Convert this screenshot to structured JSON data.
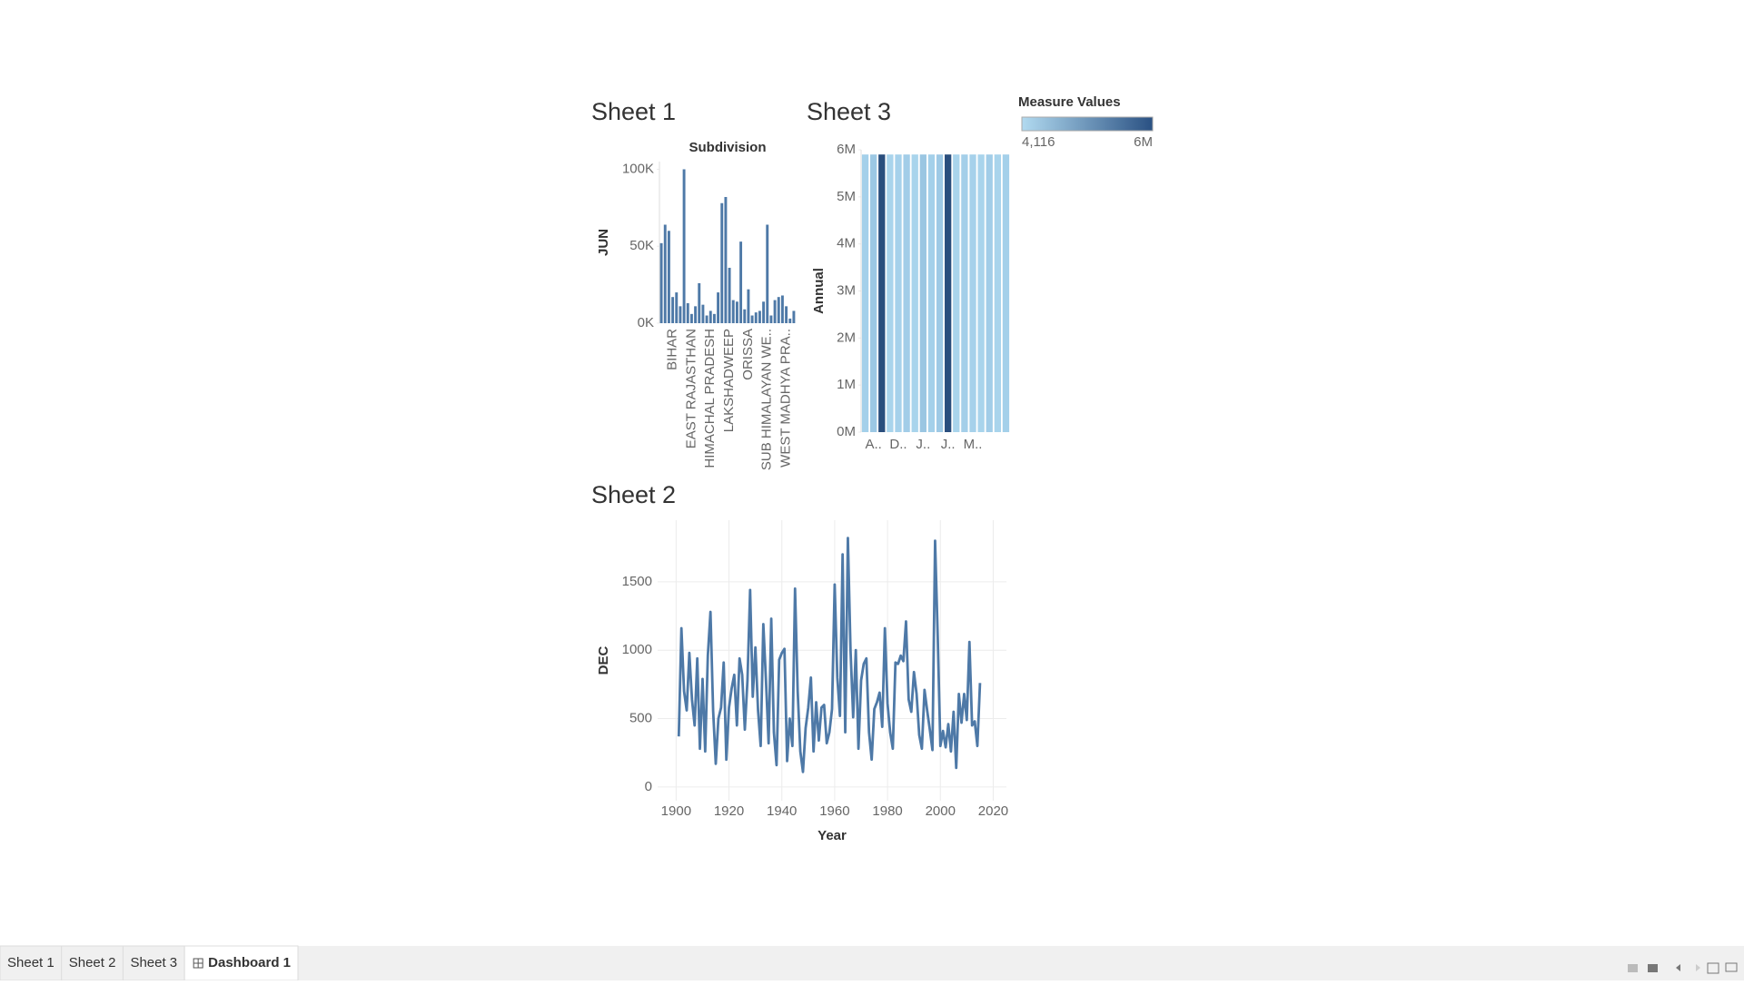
{
  "chart_data": [
    {
      "type": "bar",
      "title": "Sheet 1",
      "header": "Subdivision",
      "y_label": "JUN",
      "color": "#4e79a7",
      "categories": [
        null,
        null,
        null,
        "BIHAR",
        null,
        null,
        null,
        null,
        "EAST RAJASTHAN",
        null,
        null,
        null,
        null,
        "HIMACHAL PRADESH",
        null,
        null,
        null,
        null,
        "LAKSHADWEEP",
        null,
        null,
        null,
        null,
        "ORISSA",
        null,
        null,
        null,
        null,
        "SUB HIMALAYAN WE..",
        null,
        null,
        null,
        null,
        "WEST MADHYA PRA..",
        null,
        null
      ],
      "values": [
        52000,
        64000,
        60000,
        17000,
        20000,
        11000,
        100000,
        13000,
        6000,
        11000,
        26000,
        12000,
        5000,
        8000,
        6000,
        20000,
        78000,
        82000,
        36000,
        15000,
        14000,
        53000,
        9000,
        22000,
        5000,
        7000,
        8000,
        14000,
        64000,
        5000,
        15000,
        17000,
        18000,
        11000,
        3000,
        8000
      ],
      "ylim": [
        0,
        105000
      ],
      "yticks": [
        {
          "value": 0,
          "label": "0K"
        },
        {
          "value": 50000,
          "label": "50K"
        },
        {
          "value": 100000,
          "label": "100K"
        }
      ]
    },
    {
      "type": "bar",
      "title": "Sheet 3",
      "y_label": "Annual",
      "categories": [
        null,
        "A..",
        null,
        null,
        "D..",
        null,
        null,
        "J..",
        null,
        null,
        "J..",
        null,
        null,
        "M..",
        null,
        null,
        null,
        null
      ],
      "values": [
        5900000,
        5900000,
        5900000,
        5900000,
        5900000,
        5900000,
        5900000,
        5900000,
        5900000,
        5900000,
        5900000,
        5900000,
        5900000,
        5900000,
        5900000,
        5900000,
        5900000,
        5900000
      ],
      "colors": [
        "#a4d0ea",
        "#9cc8e4",
        "#2a4e7d",
        "#a9d4ec",
        "#a6d1eb",
        "#a2cde8",
        "#a9d4ec",
        "#9ac6e2",
        "#a4d0ea",
        "#9ec9e5",
        "#2a4e7d",
        "#a9d4ec",
        "#a4cfe9",
        "#a6d1eb",
        "#a9d4ec",
        "#a2cde8",
        "#a9d4ec",
        "#a4d0ea"
      ],
      "ylim": [
        0,
        6000000
      ],
      "yticks": [
        {
          "value": 0,
          "label": "0M"
        },
        {
          "value": 1000000,
          "label": "1M"
        },
        {
          "value": 2000000,
          "label": "2M"
        },
        {
          "value": 3000000,
          "label": "3M"
        },
        {
          "value": 4000000,
          "label": "4M"
        },
        {
          "value": 5000000,
          "label": "5M"
        },
        {
          "value": 6000000,
          "label": "6M"
        }
      ],
      "legend": {
        "title": "Measure Values",
        "min": {
          "value": 4116,
          "label": "4,116"
        },
        "max": {
          "value": 6000000,
          "label": "6M"
        },
        "colors": [
          "#b1daf0",
          "#2a5183"
        ]
      }
    },
    {
      "type": "line",
      "title": "Sheet 2",
      "x_label": "Year",
      "y_label": "DEC",
      "color": "#4e79a7",
      "grid": true,
      "x": [
        1901,
        1902,
        1903,
        1904,
        1905,
        1906,
        1907,
        1908,
        1909,
        1910,
        1911,
        1912,
        1913,
        1914,
        1915,
        1916,
        1917,
        1918,
        1919,
        1920,
        1921,
        1922,
        1923,
        1924,
        1925,
        1926,
        1927,
        1928,
        1929,
        1930,
        1931,
        1932,
        1933,
        1934,
        1935,
        1936,
        1937,
        1938,
        1939,
        1940,
        1941,
        1942,
        1943,
        1944,
        1945,
        1946,
        1947,
        1948,
        1949,
        1950,
        1951,
        1952,
        1953,
        1954,
        1955,
        1956,
        1957,
        1958,
        1959,
        1960,
        1961,
        1962,
        1963,
        1964,
        1965,
        1966,
        1967,
        1968,
        1969,
        1970,
        1971,
        1972,
        1973,
        1974,
        1975,
        1976,
        1977,
        1978,
        1979,
        1980,
        1981,
        1982,
        1983,
        1984,
        1985,
        1986,
        1987,
        1988,
        1989,
        1990,
        1991,
        1992,
        1993,
        1994,
        1995,
        1996,
        1997,
        1998,
        1999,
        2000,
        2001,
        2002,
        2003,
        2004,
        2005,
        2006,
        2007,
        2008,
        2009,
        2010,
        2011,
        2012,
        2013,
        2014,
        2015
      ],
      "values": [
        370,
        1160,
        700,
        560,
        980,
        640,
        450,
        940,
        280,
        790,
        260,
        960,
        1280,
        560,
        170,
        500,
        580,
        910,
        200,
        580,
        720,
        820,
        450,
        940,
        820,
        420,
        780,
        1440,
        660,
        1020,
        560,
        300,
        1190,
        780,
        320,
        1230,
        400,
        160,
        930,
        980,
        1010,
        190,
        500,
        300,
        1450,
        700,
        260,
        110,
        430,
        580,
        800,
        260,
        620,
        340,
        580,
        600,
        320,
        400,
        570,
        1480,
        800,
        520,
        1700,
        400,
        1820,
        1000,
        510,
        1000,
        280,
        780,
        900,
        940,
        400,
        200,
        570,
        620,
        690,
        440,
        1160,
        610,
        400,
        280,
        910,
        900,
        960,
        920,
        1210,
        640,
        550,
        840,
        680,
        380,
        280,
        710,
        560,
        420,
        270,
        1800,
        1100,
        300,
        410,
        290,
        460,
        260,
        550,
        140,
        680,
        470,
        680,
        490,
        1060,
        450,
        480,
        300,
        760
      ],
      "xlim": [
        1893,
        2025
      ],
      "xticks": [
        1900,
        1920,
        1940,
        1960,
        1980,
        2000,
        2020
      ],
      "ylim": [
        -100,
        1950
      ],
      "yticks": [
        0,
        500,
        1000,
        1500
      ]
    }
  ],
  "tabs": [
    "Sheet 1",
    "Sheet 2",
    "Sheet 3",
    "Dashboard 1"
  ],
  "active_tab": 3
}
